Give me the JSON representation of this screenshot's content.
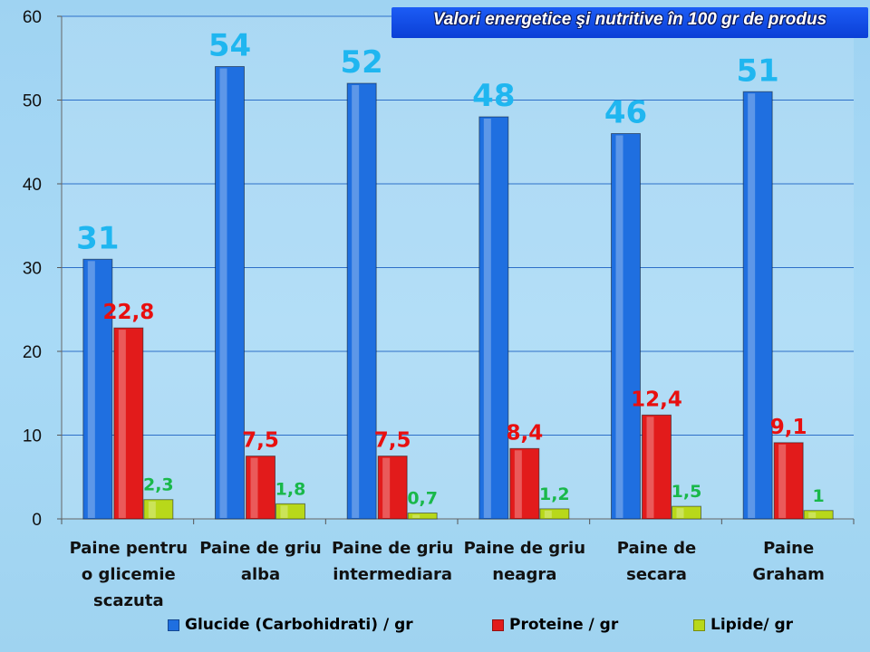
{
  "chart_data": {
    "type": "bar",
    "title": "Valori energetice şi nutritive  în 100 gr  de produs",
    "categories": [
      [
        "Paine pentru",
        "o glicemie",
        "scazuta"
      ],
      [
        "Paine de griu",
        "alba"
      ],
      [
        "Paine de griu",
        "intermediara"
      ],
      [
        "Paine de griu",
        "neagra"
      ],
      [
        "Paine de",
        "secara"
      ],
      [
        "Paine",
        "Graham"
      ]
    ],
    "series": [
      {
        "name": "Glucide (Carbohidrati) / gr",
        "color": "#1f6fe0",
        "label_color": "#1fb6f0",
        "values": [
          31,
          54,
          52,
          48,
          46,
          51
        ],
        "labels": [
          "31",
          "54",
          "52",
          "48",
          "46",
          "51"
        ]
      },
      {
        "name": "Proteine / gr",
        "color": "#e21b1b",
        "label_color": "#e80f0f",
        "values": [
          22.8,
          7.5,
          7.5,
          8.4,
          12.4,
          9.1
        ],
        "labels": [
          "22,8",
          "7,5",
          "7,5",
          "8,4",
          "12,4",
          "9,1"
        ]
      },
      {
        "name": "Lipide/ gr",
        "color": "#b8d81a",
        "label_color": "#19b84a",
        "values": [
          2.3,
          1.8,
          0.7,
          1.2,
          1.5,
          1
        ],
        "labels": [
          "2,3",
          "1,8",
          "0,7",
          "1,2",
          "1,5",
          "1"
        ]
      }
    ],
    "ylim": [
      0,
      60
    ],
    "yticks": [
      0,
      10,
      20,
      30,
      40,
      50,
      60
    ],
    "grid": true,
    "legend_position": "bottom",
    "xlabel": "",
    "ylabel": ""
  }
}
